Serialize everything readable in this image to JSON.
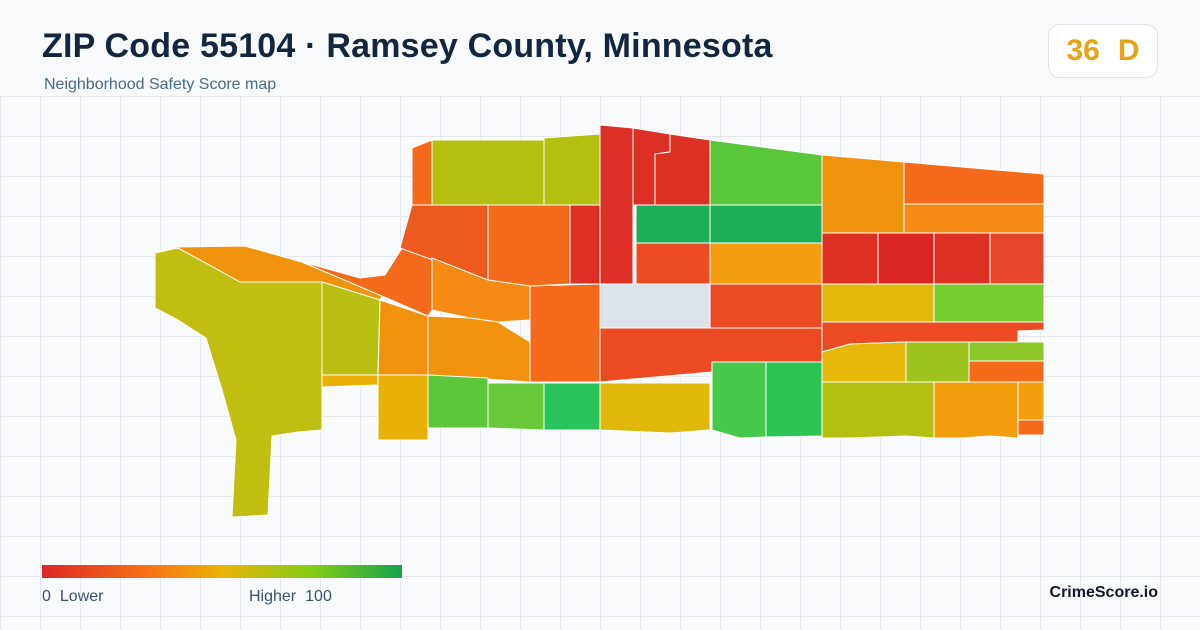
{
  "header": {
    "title": "ZIP Code 55104 · Ramsey County, Minnesota",
    "subtitle": "Neighborhood Safety Score map"
  },
  "score": {
    "value": "36",
    "grade": "D",
    "color": "#e8a317"
  },
  "legend": {
    "min_value": "0",
    "min_label": "Lower",
    "max_label": "Higher",
    "max_value": "100",
    "colors": [
      "#dc2626",
      "#f97316",
      "#eab308",
      "#84cc16",
      "#16a34a"
    ]
  },
  "brand": "CrimeScore.io",
  "map": {
    "no_data_color": "#dde3ea",
    "boundary_color": "#ffffff",
    "areas_described": "Census block groups colored by safety score"
  }
}
